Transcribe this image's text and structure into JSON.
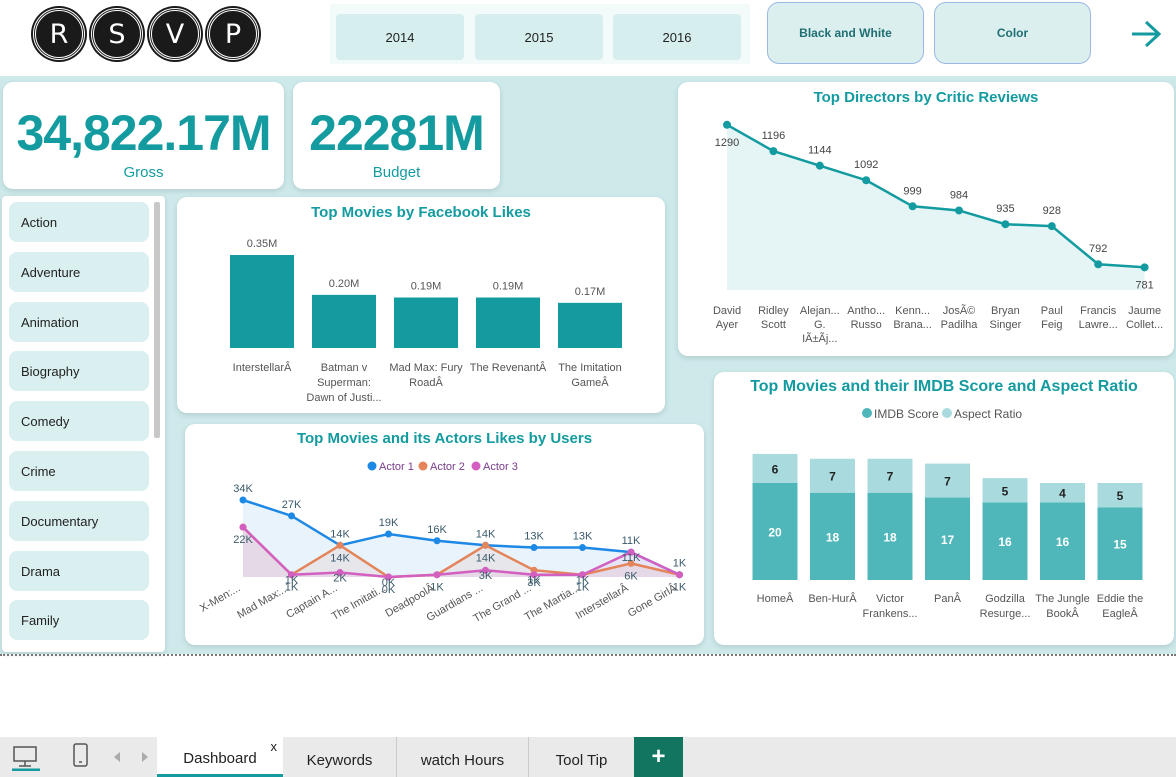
{
  "logo": {
    "letters": [
      "R",
      "S",
      "V",
      "P"
    ]
  },
  "years": [
    "2014",
    "2015",
    "2016"
  ],
  "modes": {
    "bw": "Black and White",
    "color": "Color"
  },
  "colors": {
    "teal": "#139ba0",
    "bg": "#cde9ea",
    "actor1": "#1e88e5",
    "actor2": "#e4845a",
    "actor3": "#d35fc1",
    "aspect": "#a9dbde",
    "imdb": "#4fb7ba"
  },
  "kpis": {
    "gross_value": "34,822.17M",
    "gross_label": "Gross",
    "budget_value": "22281M",
    "budget_label": "Budget"
  },
  "genres": [
    "Action",
    "Adventure",
    "Animation",
    "Biography",
    "Comedy",
    "Crime",
    "Documentary",
    "Drama",
    "Family"
  ],
  "fb_chart": {
    "title": "Top Movies by Facebook Likes",
    "categories": [
      [
        "InterstellarÂ"
      ],
      [
        "Batman v",
        "Superman:",
        "Dawn of Justi..."
      ],
      [
        "Mad Max: Fury",
        "RoadÂ"
      ],
      [
        "The RevenantÂ"
      ],
      [
        "The Imitation",
        "GameÂ"
      ]
    ],
    "values": [
      0.35,
      0.2,
      0.19,
      0.19,
      0.17
    ],
    "labels": [
      "0.35M",
      "0.20M",
      "0.19M",
      "0.19M",
      "0.17M"
    ]
  },
  "director_chart": {
    "title": "Top Directors by Critic Reviews",
    "categories": [
      [
        "David",
        "Ayer"
      ],
      [
        "Ridley",
        "Scott"
      ],
      [
        "Alejan...",
        "G.",
        "IÃ±Ãj..."
      ],
      [
        "Antho...",
        "Russo"
      ],
      [
        "Kenn...",
        "Brana..."
      ],
      [
        "JosÃ©",
        "Padilha"
      ],
      [
        "Bryan",
        "Singer"
      ],
      [
        "Paul",
        "Feig"
      ],
      [
        "Francis",
        "Lawre..."
      ],
      [
        "Jaume",
        "Collet..."
      ]
    ],
    "values": [
      1290,
      1196,
      1144,
      1092,
      999,
      984,
      935,
      928,
      792,
      781
    ]
  },
  "imdb_chart": {
    "title": "Top Movies and their IMDB Score and Aspect Ratio",
    "legend": [
      "IMDB Score",
      "Aspect Ratio"
    ],
    "categories": [
      [
        "HomeÂ"
      ],
      [
        "Ben-HurÂ"
      ],
      [
        "Victor",
        "Frankens..."
      ],
      [
        "PanÂ"
      ],
      [
        "Godzilla",
        "Resurge..."
      ],
      [
        "The Jungle",
        "BookÂ"
      ],
      [
        "Eddie the",
        "EagleÂ"
      ]
    ],
    "imdb": [
      20,
      18,
      18,
      17,
      16,
      16,
      15
    ],
    "aspect": [
      6,
      7,
      7,
      7,
      5,
      4,
      5
    ]
  },
  "actors_chart": {
    "title": "Top Movies and its Actors Likes by Users",
    "legend": [
      "Actor 1",
      "Actor 2",
      "Actor 3"
    ],
    "categories": [
      "X-Men:...",
      "Mad Max:...",
      "Captain A...",
      "The Imitati...",
      "DeadpoolÂ",
      "Guardians ...",
      "The Grand ...",
      "The Martia...",
      "InterstellarÂ",
      "Gone GirlÂ"
    ],
    "actor1": [
      34,
      27,
      14,
      19,
      16,
      14,
      13,
      13,
      11,
      1
    ],
    "actor2": [
      22,
      1,
      14,
      0,
      1,
      14,
      3,
      1,
      6,
      1
    ],
    "actor3": [
      22,
      1,
      2,
      0,
      1,
      3,
      1,
      1,
      11,
      1
    ],
    "a1_labels": [
      "34K",
      "27K",
      "14K",
      "19K",
      "16K",
      "14K",
      "13K",
      "13K",
      "11K",
      "1K"
    ],
    "a2_labels": [
      "22K",
      "1K",
      "14K",
      "0K",
      "1K",
      "14K",
      "3K",
      "1K",
      "6K",
      "1K"
    ],
    "a3_labels": [
      "",
      "1K",
      "2K",
      "0K",
      "",
      "3K",
      "1K",
      "1K",
      "11K",
      ""
    ]
  },
  "tabs": [
    "Dashboard",
    "Keywords",
    "watch Hours",
    "Tool Tip"
  ],
  "tab_close": "x",
  "add_tab": "+"
}
